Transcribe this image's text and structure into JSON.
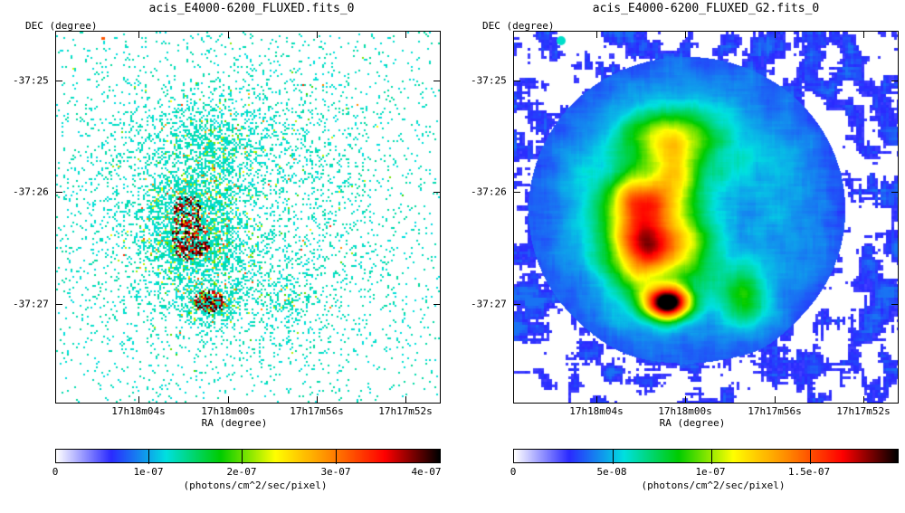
{
  "panels": [
    {
      "title": "acis_E4000-6200_FLUXED.fits_0",
      "dec_label": "DEC (degree)",
      "ra_label": "RA (degree)",
      "y_ticks": [
        "-37:25",
        "-37:26",
        "-37:27"
      ],
      "x_ticks": [
        "17h18m04s",
        "17h18m00s",
        "17h17m56s",
        "17h17m52s"
      ],
      "colorbar_ticks": [
        "0",
        "1e-07",
        "2e-07",
        "3e-07",
        "4e-07"
      ],
      "colorbar_unit": "(photons/cm^2/sec/pixel)",
      "style": "sparse"
    },
    {
      "title": "acis_E4000-6200_FLUXED_G2.fits_0",
      "dec_label": "DEC (degree)",
      "ra_label": "RA (degree)",
      "y_ticks": [
        "-37:25",
        "-37:26",
        "-37:27"
      ],
      "x_ticks": [
        "17h18m04s",
        "17h18m00s",
        "17h17m56s",
        "17h17m52s"
      ],
      "colorbar_ticks": [
        "0",
        "5e-08",
        "1e-07",
        "1.5e-07"
      ],
      "colorbar_unit": "(photons/cm^2/sec/pixel)",
      "style": "smooth"
    }
  ],
  "chart_data": [
    {
      "type": "heatmap",
      "title": "acis_E4000-6200_FLUXED.fits_0",
      "xlabel": "RA (degree)",
      "ylabel": "DEC (degree)",
      "x_tick_labels": [
        "17h18m04s",
        "17h18m00s",
        "17h17m56s",
        "17h17m52s"
      ],
      "y_tick_labels": [
        "-37:25",
        "-37:26",
        "-37:27"
      ],
      "colorbar": {
        "min": 0,
        "max": 4e-07,
        "ticks": [
          0,
          1e-07,
          2e-07,
          3e-07,
          4e-07
        ],
        "label": "(photons/cm^2/sec/pixel)"
      },
      "colormap": [
        "#ffffff",
        "#2a2aff",
        "#00e0e0",
        "#00cc00",
        "#ffff00",
        "#ff8800",
        "#ff0000",
        "#000000"
      ]
    },
    {
      "type": "heatmap",
      "title": "acis_E4000-6200_FLUXED_G2.fits_0",
      "xlabel": "RA (degree)",
      "ylabel": "DEC (degree)",
      "x_tick_labels": [
        "17h18m04s",
        "17h18m00s",
        "17h17m56s",
        "17h17m52s"
      ],
      "y_tick_labels": [
        "-37:25",
        "-37:26",
        "-37:27"
      ],
      "colorbar": {
        "min": 0,
        "max": 1.9e-07,
        "ticks": [
          0,
          5e-08,
          1e-07,
          1.5e-07
        ],
        "label": "(photons/cm^2/sec/pixel)"
      },
      "colormap": [
        "#ffffff",
        "#2a2aff",
        "#00e0e0",
        "#00cc00",
        "#ffff00",
        "#ff8800",
        "#ff0000",
        "#000000"
      ]
    }
  ]
}
